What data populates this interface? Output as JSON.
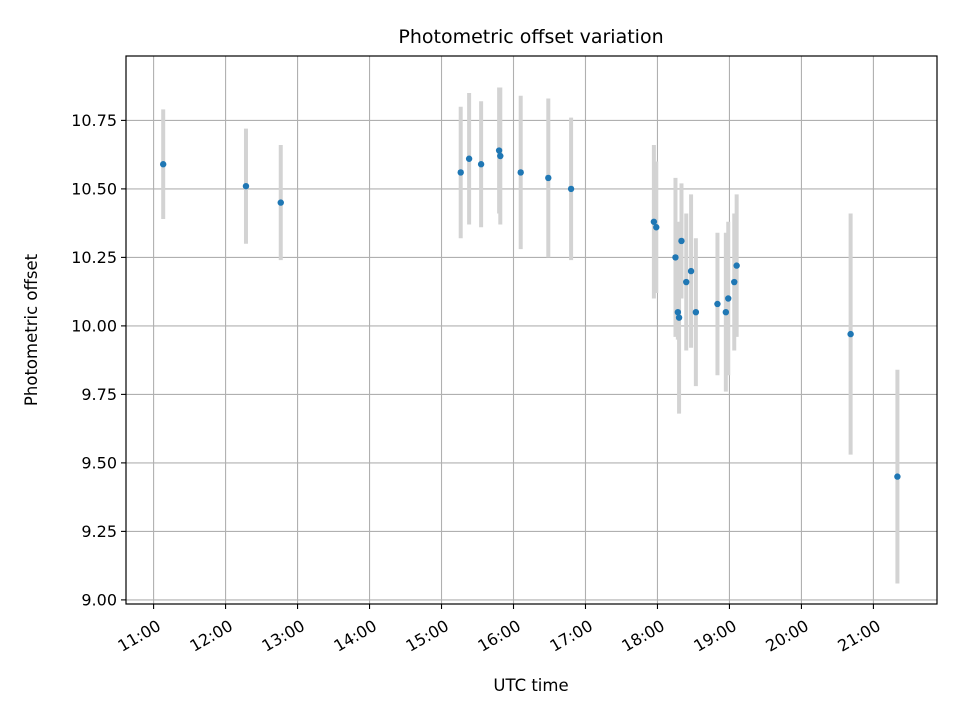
{
  "chart_data": {
    "type": "scatter",
    "title": "Photometric offset variation",
    "xlabel": "UTC time",
    "ylabel": "Photometric offset",
    "x_is_time": true,
    "xlim": [
      "10:37",
      "21:53"
    ],
    "ylim": [
      8.985,
      10.985
    ],
    "x_ticks": [
      "11:00",
      "12:00",
      "13:00",
      "14:00",
      "15:00",
      "16:00",
      "17:00",
      "18:00",
      "19:00",
      "20:00",
      "21:00"
    ],
    "y_ticks": [
      "9.00",
      "9.25",
      "9.50",
      "9.75",
      "10.00",
      "10.25",
      "10.50",
      "10.75"
    ],
    "grid": true,
    "colors": {
      "point": "#1f77b4",
      "errorbar": "#d3d3d3",
      "grid": "#b0b0b0"
    },
    "points": [
      {
        "t": "11:08",
        "y": 10.59,
        "err": 0.2
      },
      {
        "t": "12:17",
        "y": 10.51,
        "err": 0.21
      },
      {
        "t": "12:46",
        "y": 10.45,
        "err": 0.21
      },
      {
        "t": "15:16",
        "y": 10.56,
        "err": 0.24
      },
      {
        "t": "15:23",
        "y": 10.61,
        "err": 0.24
      },
      {
        "t": "15:33",
        "y": 10.59,
        "err": 0.23
      },
      {
        "t": "15:48",
        "y": 10.64,
        "err": 0.23
      },
      {
        "t": "15:49",
        "y": 10.62,
        "err": 0.25
      },
      {
        "t": "16:06",
        "y": 10.56,
        "err": 0.28
      },
      {
        "t": "16:29",
        "y": 10.54,
        "err": 0.29
      },
      {
        "t": "16:48",
        "y": 10.5,
        "err": 0.26
      },
      {
        "t": "17:57",
        "y": 10.38,
        "err": 0.28
      },
      {
        "t": "17:59",
        "y": 10.36,
        "err": 0.24
      },
      {
        "t": "18:15",
        "y": 10.25,
        "err": 0.29
      },
      {
        "t": "18:17",
        "y": 10.05,
        "err": 0.1
      },
      {
        "t": "18:18",
        "y": 10.03,
        "err": 0.35
      },
      {
        "t": "18:20",
        "y": 10.31,
        "err": 0.21
      },
      {
        "t": "18:24",
        "y": 10.16,
        "err": 0.25
      },
      {
        "t": "18:28",
        "y": 10.2,
        "err": 0.28
      },
      {
        "t": "18:32",
        "y": 10.05,
        "err": 0.27
      },
      {
        "t": "18:50",
        "y": 10.08,
        "err": 0.26
      },
      {
        "t": "18:57",
        "y": 10.05,
        "err": 0.29
      },
      {
        "t": "18:59",
        "y": 10.1,
        "err": 0.28
      },
      {
        "t": "19:04",
        "y": 10.16,
        "err": 0.25
      },
      {
        "t": "19:06",
        "y": 10.22,
        "err": 0.26
      },
      {
        "t": "20:41",
        "y": 9.97,
        "err": 0.44
      },
      {
        "t": "21:20",
        "y": 9.45,
        "err": 0.39
      }
    ]
  }
}
